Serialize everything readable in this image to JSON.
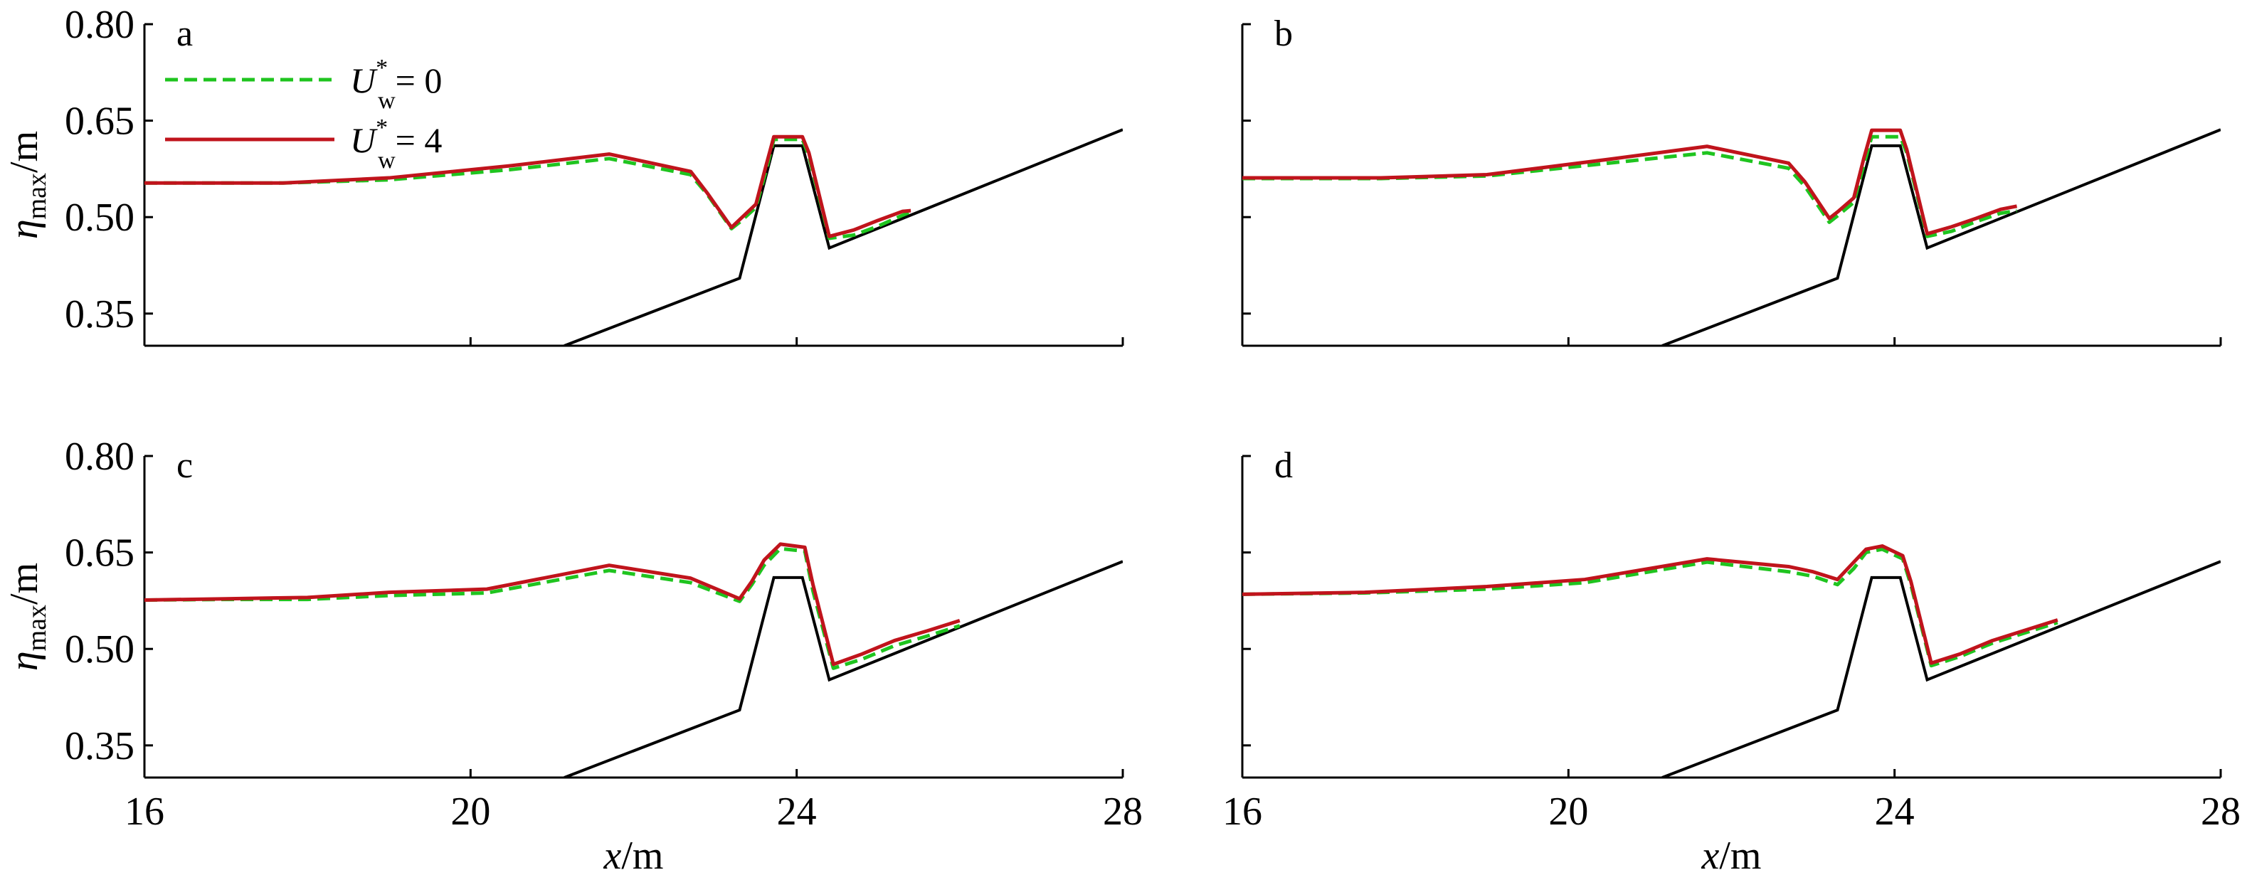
{
  "chart_data": [
    {
      "panel": "a",
      "type": "line",
      "xlabel": {
        "main": "x",
        "unit": "/m"
      },
      "ylabel": {
        "main": "η",
        "sub": "max",
        "unit": "/m"
      },
      "xlim": [
        16,
        28
      ],
      "ylim": [
        0.3,
        0.8
      ],
      "xticks": [
        16,
        20,
        24,
        28
      ],
      "yticks": [
        0.35,
        0.5,
        0.65,
        0.8
      ],
      "ytick_labels": [
        "0.35",
        "0.50",
        "0.65",
        "0.80"
      ],
      "xtick_labels": [
        "16",
        "20",
        "24",
        "28"
      ],
      "show_yticks_labels": true,
      "show_xtick_labels": false,
      "show_xlabel": false,
      "legend": [
        {
          "name": "U",
          "sup": "*",
          "sub": "w",
          "eq": "= 0",
          "color": "#1fc41f",
          "dash": true
        },
        {
          "name": "U",
          "sup": "*",
          "sub": "w",
          "eq": "= 4",
          "color": "#c0141c",
          "dash": false
        }
      ],
      "series": [
        {
          "color": "#1fc41f",
          "dash": true,
          "x": [
            16.0,
            17.7,
            19.0,
            20.5,
            21.7,
            22.7,
            22.9,
            23.2,
            23.3,
            23.5,
            23.62,
            23.72,
            24.07,
            24.15,
            24.4,
            24.7,
            25.0,
            25.3,
            25.4
          ],
          "y": [
            0.553,
            0.553,
            0.558,
            0.574,
            0.591,
            0.566,
            0.536,
            0.482,
            0.492,
            0.515,
            0.57,
            0.621,
            0.621,
            0.595,
            0.467,
            0.472,
            0.486,
            0.503,
            0.508
          ]
        },
        {
          "color": "#c0141c",
          "dash": false,
          "x": [
            16.0,
            17.7,
            19.0,
            20.5,
            21.7,
            22.7,
            22.9,
            23.2,
            23.3,
            23.5,
            23.62,
            23.72,
            24.07,
            24.15,
            24.4,
            24.7,
            25.0,
            25.3,
            25.4
          ],
          "y": [
            0.553,
            0.553,
            0.561,
            0.58,
            0.598,
            0.571,
            0.538,
            0.484,
            0.496,
            0.52,
            0.578,
            0.625,
            0.625,
            0.6,
            0.47,
            0.48,
            0.495,
            0.509,
            0.51
          ]
        }
      ],
      "bathymetry": {
        "x": [
          21.15,
          23.3,
          23.72,
          24.07,
          24.4,
          28.0
        ],
        "y": [
          0.3,
          0.405,
          0.611,
          0.611,
          0.452,
          0.636
        ]
      }
    },
    {
      "panel": "b",
      "type": "line",
      "xlim": [
        16,
        28
      ],
      "ylim": [
        0.3,
        0.8
      ],
      "xticks": [
        16,
        20,
        24,
        28
      ],
      "yticks": [
        0.35,
        0.5,
        0.65,
        0.8
      ],
      "show_yticks_labels": false,
      "show_xtick_labels": false,
      "show_xlabel": false,
      "series": [
        {
          "color": "#1fc41f",
          "dash": true,
          "x": [
            16.0,
            17.7,
            19.0,
            20.5,
            21.7,
            22.7,
            22.9,
            23.2,
            23.3,
            23.5,
            23.62,
            23.72,
            24.07,
            24.15,
            24.4,
            24.7,
            25.0,
            25.3,
            25.5
          ],
          "y": [
            0.56,
            0.56,
            0.564,
            0.584,
            0.6,
            0.576,
            0.548,
            0.492,
            0.502,
            0.523,
            0.58,
            0.625,
            0.625,
            0.6,
            0.47,
            0.478,
            0.493,
            0.506,
            0.51
          ]
        },
        {
          "color": "#c0141c",
          "dash": false,
          "x": [
            16.0,
            17.7,
            19.0,
            20.5,
            21.7,
            22.7,
            22.9,
            23.2,
            23.3,
            23.5,
            23.62,
            23.72,
            24.07,
            24.15,
            24.4,
            24.7,
            25.0,
            25.3,
            25.5
          ],
          "y": [
            0.561,
            0.561,
            0.566,
            0.59,
            0.61,
            0.584,
            0.555,
            0.498,
            0.508,
            0.53,
            0.59,
            0.635,
            0.635,
            0.605,
            0.474,
            0.485,
            0.498,
            0.512,
            0.517
          ]
        }
      ],
      "bathymetry": {
        "x": [
          21.15,
          23.3,
          23.72,
          24.07,
          24.4,
          28.0
        ],
        "y": [
          0.3,
          0.405,
          0.611,
          0.611,
          0.452,
          0.636
        ]
      }
    },
    {
      "panel": "c",
      "type": "line",
      "xlim": [
        16,
        28
      ],
      "ylim": [
        0.3,
        0.8
      ],
      "xticks": [
        16,
        20,
        24,
        28
      ],
      "yticks": [
        0.35,
        0.5,
        0.65,
        0.8
      ],
      "show_yticks_labels": true,
      "show_xtick_labels": true,
      "show_xlabel": true,
      "series": [
        {
          "color": "#1fc41f",
          "dash": true,
          "x": [
            16.0,
            17.0,
            18.0,
            19.0,
            20.2,
            21.7,
            22.7,
            23.3,
            23.45,
            23.6,
            23.8,
            24.1,
            24.2,
            24.45,
            24.8,
            25.2,
            25.6,
            26.0
          ],
          "y": [
            0.576,
            0.577,
            0.577,
            0.583,
            0.587,
            0.622,
            0.603,
            0.574,
            0.6,
            0.63,
            0.656,
            0.652,
            0.59,
            0.47,
            0.484,
            0.505,
            0.52,
            0.536
          ]
        },
        {
          "color": "#c0141c",
          "dash": false,
          "x": [
            16.0,
            17.0,
            18.0,
            19.0,
            20.2,
            21.7,
            22.7,
            23.3,
            23.45,
            23.6,
            23.8,
            24.1,
            24.2,
            24.45,
            24.8,
            25.2,
            25.6,
            26.0
          ],
          "y": [
            0.576,
            0.578,
            0.58,
            0.588,
            0.593,
            0.63,
            0.61,
            0.578,
            0.605,
            0.638,
            0.663,
            0.658,
            0.6,
            0.476,
            0.492,
            0.513,
            0.528,
            0.544
          ]
        }
      ],
      "bathymetry": {
        "x": [
          21.15,
          23.3,
          23.72,
          24.07,
          24.4,
          28.0
        ],
        "y": [
          0.3,
          0.405,
          0.611,
          0.611,
          0.452,
          0.636
        ]
      }
    },
    {
      "panel": "d",
      "type": "line",
      "xlim": [
        16,
        28
      ],
      "ylim": [
        0.3,
        0.8
      ],
      "xticks": [
        16,
        20,
        24,
        28
      ],
      "yticks": [
        0.35,
        0.5,
        0.65,
        0.8
      ],
      "show_yticks_labels": false,
      "show_xtick_labels": true,
      "show_xlabel": true,
      "series": [
        {
          "color": "#1fc41f",
          "dash": true,
          "x": [
            16.0,
            17.5,
            19.0,
            20.2,
            21.7,
            22.7,
            23.0,
            23.3,
            23.5,
            23.65,
            23.85,
            24.1,
            24.2,
            24.45,
            24.8,
            25.2,
            25.6,
            26.0
          ],
          "y": [
            0.585,
            0.587,
            0.593,
            0.603,
            0.635,
            0.62,
            0.613,
            0.6,
            0.625,
            0.65,
            0.655,
            0.64,
            0.6,
            0.474,
            0.488,
            0.509,
            0.525,
            0.541
          ]
        },
        {
          "color": "#c0141c",
          "dash": false,
          "x": [
            16.0,
            17.5,
            19.0,
            20.2,
            21.7,
            22.7,
            23.0,
            23.3,
            23.5,
            23.65,
            23.85,
            24.1,
            24.2,
            24.45,
            24.8,
            25.2,
            25.6,
            26.0
          ],
          "y": [
            0.585,
            0.588,
            0.597,
            0.608,
            0.64,
            0.628,
            0.62,
            0.608,
            0.635,
            0.655,
            0.66,
            0.645,
            0.605,
            0.478,
            0.492,
            0.513,
            0.529,
            0.545
          ]
        }
      ],
      "bathymetry": {
        "x": [
          21.15,
          23.3,
          23.72,
          24.07,
          24.4,
          28.0
        ],
        "y": [
          0.3,
          0.405,
          0.611,
          0.611,
          0.452,
          0.636
        ]
      }
    }
  ]
}
